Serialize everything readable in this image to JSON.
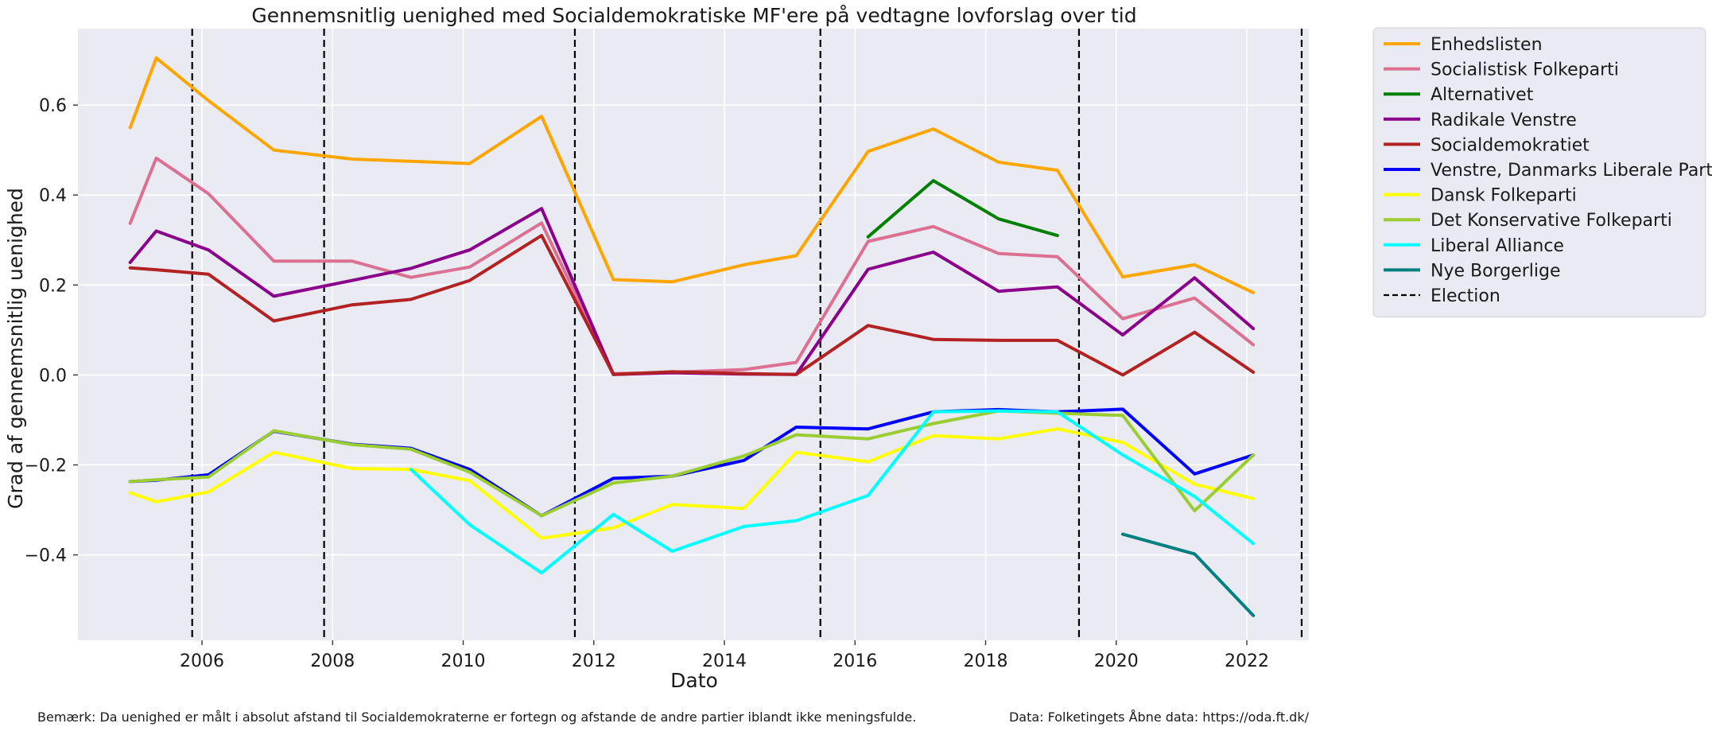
{
  "chart_data": {
    "type": "line",
    "title": "Gennemsnitlig uenighed med Socialdemokratiske MF'ere på vedtagne lovforslag over tid",
    "xlabel": "Dato",
    "ylabel": "Grad af gennemsnitlig uenighed",
    "xlim": [
      2004.1,
      2022.95
    ],
    "ylim": [
      -0.59,
      0.77
    ],
    "x_ticks": [
      2006,
      2008,
      2010,
      2012,
      2014,
      2016,
      2018,
      2020,
      2022
    ],
    "y_ticks": [
      -0.4,
      -0.2,
      0.0,
      0.2,
      0.4,
      0.6
    ],
    "y_tick_labels": [
      "−0.4",
      "−0.2",
      "0.0",
      "0.2",
      "0.4",
      "0.6"
    ],
    "grid": true,
    "legend_position": "outside right, top",
    "background_color": "#eaeaf2",
    "elections": {
      "name": "Election",
      "color": "#000000",
      "x": [
        2005.85,
        2007.87,
        2011.71,
        2015.47,
        2019.43,
        2022.84
      ]
    },
    "series": [
      {
        "name": "Enhedslisten",
        "color": "#ffa500",
        "points": [
          [
            2004.9,
            0.55
          ],
          [
            2005.3,
            0.705
          ],
          [
            2006.1,
            0.61
          ],
          [
            2007.1,
            0.5
          ],
          [
            2008.3,
            0.48
          ],
          [
            2009.2,
            0.475
          ],
          [
            2010.1,
            0.47
          ],
          [
            2011.2,
            0.575
          ],
          [
            2012.3,
            0.212
          ],
          [
            2013.2,
            0.207
          ],
          [
            2014.3,
            0.245
          ],
          [
            2015.1,
            0.265
          ],
          [
            2016.2,
            0.497
          ],
          [
            2017.2,
            0.547
          ],
          [
            2018.2,
            0.473
          ],
          [
            2019.1,
            0.455
          ],
          [
            2020.1,
            0.218
          ],
          [
            2021.2,
            0.245
          ],
          [
            2022.1,
            0.183
          ]
        ]
      },
      {
        "name": "Socialistisk Folkeparti",
        "color": "#db7093",
        "points": [
          [
            2004.9,
            0.337
          ],
          [
            2005.3,
            0.482
          ],
          [
            2006.1,
            0.403
          ],
          [
            2007.1,
            0.253
          ],
          [
            2008.3,
            0.253
          ],
          [
            2009.2,
            0.217
          ],
          [
            2010.1,
            0.24
          ],
          [
            2011.2,
            0.338
          ],
          [
            2012.3,
            0.003
          ],
          [
            2013.2,
            0.006
          ],
          [
            2014.3,
            0.012
          ],
          [
            2015.1,
            0.028
          ],
          [
            2016.2,
            0.297
          ],
          [
            2017.2,
            0.33
          ],
          [
            2018.2,
            0.27
          ],
          [
            2019.1,
            0.263
          ],
          [
            2020.1,
            0.125
          ],
          [
            2021.2,
            0.171
          ],
          [
            2022.1,
            0.067
          ]
        ]
      },
      {
        "name": "Alternativet",
        "color": "#008000",
        "points": [
          [
            2016.2,
            0.307
          ],
          [
            2017.2,
            0.432
          ],
          [
            2018.2,
            0.347
          ],
          [
            2019.1,
            0.31
          ]
        ]
      },
      {
        "name": "Radikale Venstre",
        "color": "#8b008b",
        "points": [
          [
            2004.9,
            0.25
          ],
          [
            2005.3,
            0.32
          ],
          [
            2006.1,
            0.278
          ],
          [
            2007.1,
            0.175
          ],
          [
            2008.3,
            0.21
          ],
          [
            2009.2,
            0.237
          ],
          [
            2010.1,
            0.278
          ],
          [
            2011.2,
            0.37
          ],
          [
            2012.3,
            0.001
          ],
          [
            2013.2,
            0.005
          ],
          [
            2014.3,
            0.002
          ],
          [
            2015.1,
            0.001
          ],
          [
            2016.2,
            0.235
          ],
          [
            2017.2,
            0.273
          ],
          [
            2018.2,
            0.186
          ],
          [
            2019.1,
            0.196
          ],
          [
            2020.1,
            0.089
          ],
          [
            2021.2,
            0.216
          ],
          [
            2022.1,
            0.103
          ]
        ]
      },
      {
        "name": "Socialdemokratiet",
        "color": "#b22222",
        "points": [
          [
            2004.9,
            0.238
          ],
          [
            2005.3,
            0.234
          ],
          [
            2006.1,
            0.224
          ],
          [
            2007.1,
            0.12
          ],
          [
            2008.3,
            0.156
          ],
          [
            2009.2,
            0.168
          ],
          [
            2010.1,
            0.21
          ],
          [
            2011.2,
            0.31
          ],
          [
            2012.3,
            0.001
          ],
          [
            2013.2,
            0.007
          ],
          [
            2014.3,
            0.003
          ],
          [
            2015.1,
            0.001
          ],
          [
            2016.2,
            0.11
          ],
          [
            2017.2,
            0.079
          ],
          [
            2018.2,
            0.077
          ],
          [
            2019.1,
            0.077
          ],
          [
            2020.1,
            0.0
          ],
          [
            2021.2,
            0.095
          ],
          [
            2022.1,
            0.006
          ]
        ]
      },
      {
        "name": "Venstre, Danmarks Liberale Parti",
        "color": "#0000ff",
        "points": [
          [
            2004.9,
            -0.237
          ],
          [
            2005.3,
            -0.234
          ],
          [
            2006.1,
            -0.222
          ],
          [
            2007.1,
            -0.125
          ],
          [
            2008.3,
            -0.154
          ],
          [
            2009.2,
            -0.163
          ],
          [
            2010.1,
            -0.21
          ],
          [
            2011.2,
            -0.313
          ],
          [
            2012.3,
            -0.23
          ],
          [
            2013.2,
            -0.225
          ],
          [
            2014.3,
            -0.19
          ],
          [
            2015.1,
            -0.116
          ],
          [
            2016.2,
            -0.12
          ],
          [
            2017.2,
            -0.082
          ],
          [
            2018.2,
            -0.077
          ],
          [
            2019.1,
            -0.082
          ],
          [
            2020.1,
            -0.076
          ],
          [
            2021.2,
            -0.22
          ],
          [
            2022.1,
            -0.178
          ]
        ]
      },
      {
        "name": "Dansk Folkeparti",
        "color": "#ffff00",
        "points": [
          [
            2004.9,
            -0.262
          ],
          [
            2005.3,
            -0.282
          ],
          [
            2006.1,
            -0.26
          ],
          [
            2007.1,
            -0.172
          ],
          [
            2008.3,
            -0.208
          ],
          [
            2009.2,
            -0.21
          ],
          [
            2010.1,
            -0.235
          ],
          [
            2011.2,
            -0.363
          ],
          [
            2012.3,
            -0.34
          ],
          [
            2013.2,
            -0.288
          ],
          [
            2014.3,
            -0.297
          ],
          [
            2015.1,
            -0.172
          ],
          [
            2016.2,
            -0.193
          ],
          [
            2017.2,
            -0.135
          ],
          [
            2018.2,
            -0.142
          ],
          [
            2019.1,
            -0.12
          ],
          [
            2020.1,
            -0.15
          ],
          [
            2021.2,
            -0.243
          ],
          [
            2022.1,
            -0.275
          ]
        ]
      },
      {
        "name": "Det Konservative Folkeparti",
        "color": "#9acd32",
        "points": [
          [
            2004.9,
            -0.237
          ],
          [
            2005.3,
            -0.233
          ],
          [
            2006.1,
            -0.227
          ],
          [
            2007.1,
            -0.124
          ],
          [
            2008.3,
            -0.155
          ],
          [
            2009.2,
            -0.165
          ],
          [
            2010.1,
            -0.216
          ],
          [
            2011.2,
            -0.313
          ],
          [
            2012.3,
            -0.24
          ],
          [
            2013.2,
            -0.225
          ],
          [
            2014.3,
            -0.18
          ],
          [
            2015.1,
            -0.133
          ],
          [
            2016.2,
            -0.142
          ],
          [
            2017.2,
            -0.108
          ],
          [
            2018.2,
            -0.08
          ],
          [
            2019.1,
            -0.085
          ],
          [
            2020.1,
            -0.09
          ],
          [
            2021.2,
            -0.302
          ],
          [
            2022.1,
            -0.178
          ]
        ]
      },
      {
        "name": "Liberal Alliance",
        "color": "#00ffff",
        "points": [
          [
            2009.2,
            -0.21
          ],
          [
            2010.1,
            -0.333
          ],
          [
            2011.2,
            -0.44
          ],
          [
            2012.3,
            -0.31
          ],
          [
            2013.2,
            -0.392
          ],
          [
            2014.3,
            -0.337
          ],
          [
            2015.1,
            -0.324
          ],
          [
            2016.2,
            -0.268
          ],
          [
            2017.2,
            -0.082
          ],
          [
            2018.2,
            -0.08
          ],
          [
            2019.1,
            -0.082
          ],
          [
            2020.1,
            -0.178
          ],
          [
            2021.2,
            -0.27
          ],
          [
            2022.1,
            -0.375
          ]
        ]
      },
      {
        "name": "Nye Borgerlige",
        "color": "#008080",
        "points": [
          [
            2020.1,
            -0.354
          ],
          [
            2021.2,
            -0.398
          ],
          [
            2022.1,
            -0.535
          ]
        ]
      }
    ],
    "footnote_left": "Bemærk: Da uenighed er målt i absolut afstand til Socialdemokraterne er fortegn og afstande de andre partier iblandt ikke meningsfulde.",
    "footnote_right": "Data: Folketingets Åbne data: https://oda.ft.dk/"
  }
}
